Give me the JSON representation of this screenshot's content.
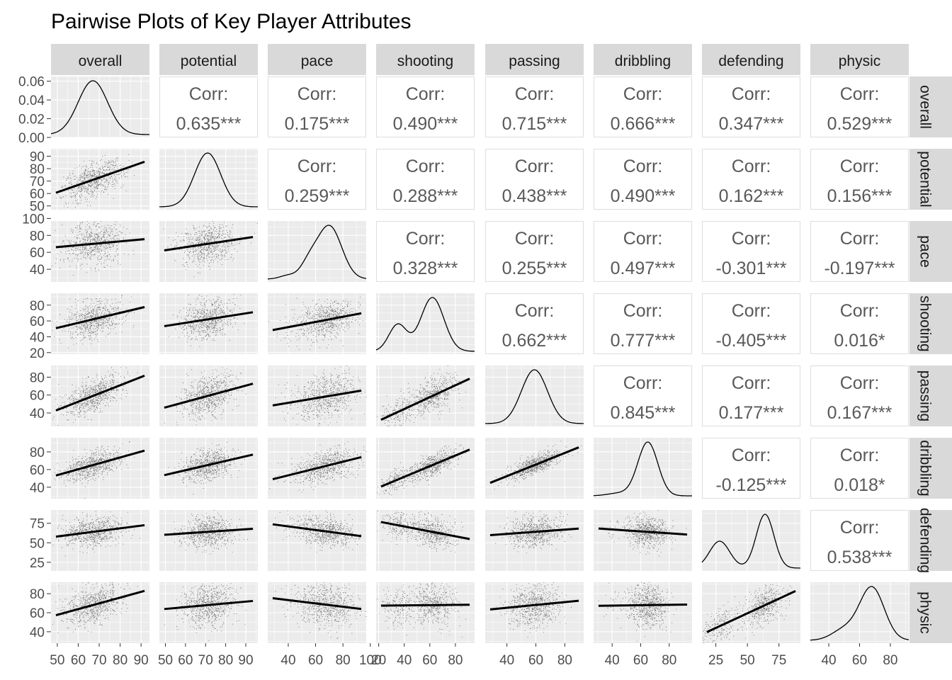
{
  "chart_data": {
    "type": "scatter",
    "title": "Pairwise Plots of Key Player Attributes",
    "variables": [
      "overall",
      "potential",
      "pace",
      "shooting",
      "passing",
      "dribbling",
      "defending",
      "physic"
    ],
    "diagonal_density_axis": {
      "ticks": [
        "0.00",
        "0.02",
        "0.04",
        "0.06"
      ],
      "ylim": [
        0,
        0.065
      ]
    },
    "axes": {
      "overall": {
        "range": [
          47,
          94
        ],
        "ticks": [
          "50",
          "60",
          "70",
          "80",
          "90"
        ]
      },
      "potential": {
        "range": [
          47,
          96
        ],
        "ticks": [
          "50",
          "60",
          "70",
          "80",
          "90"
        ]
      },
      "pace": {
        "range": [
          25,
          97
        ],
        "ticks": [
          "40",
          "60",
          "80",
          "100"
        ]
      },
      "shooting": {
        "range": [
          18,
          95
        ],
        "ticks": [
          "20",
          "40",
          "60",
          "80"
        ]
      },
      "passing": {
        "range": [
          25,
          93
        ],
        "ticks": [
          "40",
          "60",
          "80"
        ]
      },
      "dribbling": {
        "range": [
          27,
          96
        ],
        "ticks": [
          "40",
          "60",
          "80"
        ]
      },
      "defending": {
        "range": [
          14,
          92
        ],
        "ticks": [
          "25",
          "50",
          "75"
        ]
      },
      "physic": {
        "range": [
          28,
          92
        ],
        "ticks": [
          "40",
          "60",
          "80"
        ]
      }
    },
    "correlation_label": "Corr:",
    "correlations": [
      {
        "row": "overall",
        "col": "potential",
        "value": "0.635***"
      },
      {
        "row": "overall",
        "col": "pace",
        "value": "0.175***"
      },
      {
        "row": "overall",
        "col": "shooting",
        "value": "0.490***"
      },
      {
        "row": "overall",
        "col": "passing",
        "value": "0.715***"
      },
      {
        "row": "overall",
        "col": "dribbling",
        "value": "0.666***"
      },
      {
        "row": "overall",
        "col": "defending",
        "value": "0.347***"
      },
      {
        "row": "overall",
        "col": "physic",
        "value": "0.529***"
      },
      {
        "row": "potential",
        "col": "pace",
        "value": "0.259***"
      },
      {
        "row": "potential",
        "col": "shooting",
        "value": "0.288***"
      },
      {
        "row": "potential",
        "col": "passing",
        "value": "0.438***"
      },
      {
        "row": "potential",
        "col": "dribbling",
        "value": "0.490***"
      },
      {
        "row": "potential",
        "col": "defending",
        "value": "0.162***"
      },
      {
        "row": "potential",
        "col": "physic",
        "value": "0.156***"
      },
      {
        "row": "pace",
        "col": "shooting",
        "value": "0.328***"
      },
      {
        "row": "pace",
        "col": "passing",
        "value": "0.255***"
      },
      {
        "row": "pace",
        "col": "dribbling",
        "value": "0.497***"
      },
      {
        "row": "pace",
        "col": "defending",
        "value": "-0.301***"
      },
      {
        "row": "pace",
        "col": "physic",
        "value": "-0.197***"
      },
      {
        "row": "shooting",
        "col": "passing",
        "value": "0.662***"
      },
      {
        "row": "shooting",
        "col": "dribbling",
        "value": "0.777***"
      },
      {
        "row": "shooting",
        "col": "defending",
        "value": "-0.405***"
      },
      {
        "row": "shooting",
        "col": "physic",
        "value": "0.016*"
      },
      {
        "row": "passing",
        "col": "dribbling",
        "value": "0.845***"
      },
      {
        "row": "passing",
        "col": "defending",
        "value": "0.177***"
      },
      {
        "row": "passing",
        "col": "physic",
        "value": "0.167***"
      },
      {
        "row": "dribbling",
        "col": "defending",
        "value": "-0.125***"
      },
      {
        "row": "dribbling",
        "col": "physic",
        "value": "0.018*"
      },
      {
        "row": "defending",
        "col": "physic",
        "value": "0.538***"
      }
    ],
    "densities": {
      "overall": {
        "peaks": [
          [
            67,
            7,
            1.0
          ]
        ]
      },
      "potential": {
        "peaks": [
          [
            71,
            6.5,
            1.0
          ]
        ]
      },
      "pace": {
        "peaks": [
          [
            70,
            9,
            1.0
          ],
          [
            40,
            6,
            0.07
          ],
          [
            55,
            6,
            0.25
          ]
        ]
      },
      "shooting": {
        "peaks": [
          [
            62,
            9,
            1.0
          ],
          [
            35,
            7,
            0.5
          ]
        ]
      },
      "passing": {
        "peaks": [
          [
            59,
            9,
            1.0
          ]
        ]
      },
      "dribbling": {
        "peaks": [
          [
            65,
            7,
            1.0
          ],
          [
            45,
            8,
            0.05
          ]
        ]
      },
      "defending": {
        "peaks": [
          [
            64,
            7,
            1.0
          ],
          [
            28,
            8,
            0.5
          ]
        ]
      },
      "physic": {
        "peaks": [
          [
            68,
            8,
            1.0
          ],
          [
            50,
            8,
            0.2
          ]
        ]
      }
    },
    "grid": true,
    "colors": {
      "points": "#000000",
      "panel_bg": "#ebebeb",
      "strip_bg": "#d9d9d9",
      "corr_text": "#595959",
      "tick_text": "#4d4d4d"
    }
  }
}
